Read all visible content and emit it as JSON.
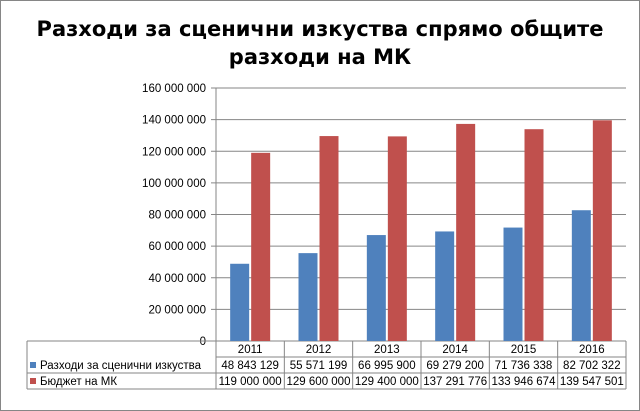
{
  "chart_data": {
    "type": "bar",
    "title_line1": "Разходи за сценични изкуства спрямо общите",
    "title_line2": "разходи на МК",
    "categories": [
      "2011",
      "2012",
      "2013",
      "2014",
      "2015",
      "2016"
    ],
    "series": [
      {
        "name": "Разходи за сценични изкуства",
        "color": "#4F81BD",
        "values": [
          48843129,
          55571199,
          66995900,
          69279200,
          71736338,
          82702322
        ],
        "labels": [
          "48 843 129",
          "55 571 199",
          "66 995 900",
          "69 279 200",
          "71 736 338",
          "82 702 322"
        ]
      },
      {
        "name": "Бюджет на МК",
        "color": "#C0504D",
        "values": [
          119000000,
          129600000,
          129400000,
          137291776,
          133946674,
          139547501
        ],
        "labels": [
          "119 000 000",
          "129 600 000",
          "129 400 000",
          "137 291 776",
          "133 946 674",
          "139 547 501"
        ]
      }
    ],
    "ylim": [
      0,
      160000000
    ],
    "y_ticks": [
      0,
      20000000,
      40000000,
      60000000,
      80000000,
      100000000,
      120000000,
      140000000,
      160000000
    ],
    "y_tick_labels": [
      "0",
      "20 000 000",
      "40 000 000",
      "60 000 000",
      "80 000 000",
      "100 000 000",
      "120 000 000",
      "140 000 000",
      "160 000 000"
    ],
    "grid": true,
    "legend": "data-table-left"
  }
}
